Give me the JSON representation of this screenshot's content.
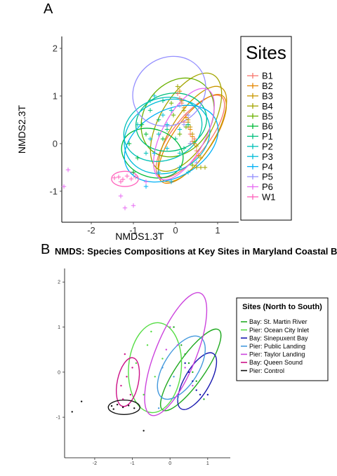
{
  "panels": {
    "a_letter": "A",
    "b_letter": "B",
    "b_title": "NMDS: Species Compositions at Key Sites in Maryland Coastal Bays"
  },
  "chart_data": [
    {
      "type": "scatter",
      "title": "",
      "xlabel": "NMDS1.3T",
      "ylabel": "NMDS2.3T",
      "xlim": [
        -2.7,
        1.5
      ],
      "ylim": [
        -1.65,
        2.25
      ],
      "xticks": [
        -2,
        -1,
        0,
        1
      ],
      "yticks": [
        -1,
        0,
        1,
        2
      ],
      "grid": false,
      "legend_position": "right",
      "legend_title": "Sites",
      "marker": "plus",
      "series": [
        {
          "name": "B1",
          "color": "#F8766D",
          "points": [
            [
              0.05,
              1.05
            ],
            [
              0.15,
              0.85
            ],
            [
              0.25,
              0.6
            ],
            [
              0.3,
              0.35
            ],
            [
              0.35,
              0.2
            ],
            [
              0.2,
              0.45
            ],
            [
              0.4,
              0.05
            ],
            [
              0.5,
              -0.15
            ],
            [
              0.45,
              0.1
            ],
            [
              0.1,
              0.95
            ]
          ],
          "ellipse": {
            "cx": 0.35,
            "cy": 0.15,
            "rx": 1.2,
            "ry": 0.38,
            "angle": -52
          }
        },
        {
          "name": "B2",
          "color": "#E58700",
          "points": [
            [
              0.1,
              1.1
            ],
            [
              0.2,
              0.75
            ],
            [
              0.3,
              0.45
            ],
            [
              0.35,
              0.3
            ],
            [
              0.45,
              0.0
            ],
            [
              0.55,
              -0.25
            ],
            [
              0.25,
              0.55
            ],
            [
              0.4,
              0.15
            ]
          ],
          "ellipse": {
            "cx": 0.4,
            "cy": 0.1,
            "rx": 1.25,
            "ry": 0.4,
            "angle": -55
          }
        },
        {
          "name": "B3",
          "color": "#C99800",
          "points": [
            [
              0.15,
              0.9
            ],
            [
              0.3,
              0.5
            ],
            [
              0.4,
              0.2
            ],
            [
              0.5,
              -0.05
            ],
            [
              0.6,
              -0.3
            ],
            [
              0.35,
              0.35
            ]
          ],
          "ellipse": {
            "cx": 0.4,
            "cy": 0.2,
            "rx": 1.3,
            "ry": 0.45,
            "angle": -58
          }
        },
        {
          "name": "B4",
          "color": "#A3A500",
          "points": [
            [
              0.05,
              1.2
            ],
            [
              0.2,
              0.7
            ],
            [
              0.3,
              0.4
            ],
            [
              0.45,
              0.05
            ],
            [
              0.6,
              -0.5
            ],
            [
              0.7,
              -0.5
            ],
            [
              0.5,
              -0.5
            ]
          ],
          "ellipse": {
            "cx": 0.25,
            "cy": 0.45,
            "rx": 1.3,
            "ry": 0.55,
            "angle": -60
          }
        },
        {
          "name": "B5",
          "color": "#6BB100",
          "points": [
            [
              -0.2,
              0.4
            ],
            [
              -0.05,
              0.6
            ],
            [
              0.1,
              0.2
            ],
            [
              0.25,
              0.35
            ],
            [
              0.35,
              0.0
            ],
            [
              -0.1,
              0.85
            ],
            [
              0.4,
              -0.45
            ]
          ],
          "ellipse": {
            "cx": 0.05,
            "cy": 0.55,
            "rx": 1.0,
            "ry": 0.7,
            "angle": -55
          }
        },
        {
          "name": "B6",
          "color": "#00BA38",
          "points": [
            [
              -1.1,
              0.0
            ],
            [
              -0.9,
              -0.3
            ],
            [
              -0.7,
              0.2
            ],
            [
              -0.5,
              -0.2
            ],
            [
              -0.3,
              0.1
            ],
            [
              -1.0,
              -0.6
            ],
            [
              -0.8,
              0.4
            ]
          ],
          "ellipse": {
            "cx": -0.55,
            "cy": -0.2,
            "rx": 0.75,
            "ry": 0.5,
            "angle": 20
          }
        },
        {
          "name": "P1",
          "color": "#00BF7D",
          "points": [
            [
              -0.6,
              0.7
            ],
            [
              -0.4,
              0.5
            ],
            [
              -0.2,
              0.3
            ],
            [
              0.0,
              0.1
            ],
            [
              0.2,
              -0.1
            ],
            [
              -0.3,
              0.9
            ],
            [
              0.3,
              0.4
            ]
          ],
          "ellipse": {
            "cx": -0.1,
            "cy": 0.45,
            "rx": 0.85,
            "ry": 0.6,
            "angle": -15
          }
        },
        {
          "name": "P2",
          "color": "#00C0B8",
          "points": [
            [
              -0.9,
              0.4
            ],
            [
              -0.6,
              0.9
            ],
            [
              -0.4,
              0.2
            ],
            [
              -0.1,
              0.7
            ],
            [
              0.1,
              -0.2
            ],
            [
              -0.7,
              -0.2
            ]
          ],
          "ellipse": {
            "cx": -0.3,
            "cy": 0.3,
            "rx": 0.95,
            "ry": 0.65,
            "angle": -20
          }
        },
        {
          "name": "P3",
          "color": "#00BCD8",
          "points": [
            [
              -0.5,
              1.0
            ],
            [
              -0.3,
              0.6
            ],
            [
              -0.2,
              -0.1
            ],
            [
              0.1,
              0.3
            ],
            [
              0.3,
              -0.6
            ],
            [
              -0.6,
              0.1
            ]
          ],
          "ellipse": {
            "cx": -0.2,
            "cy": 0.15,
            "rx": 1.05,
            "ry": 0.75,
            "angle": -25
          }
        },
        {
          "name": "P4",
          "color": "#00B0F6",
          "points": [
            [
              -0.7,
              -0.9
            ],
            [
              -0.4,
              -0.6
            ],
            [
              -0.1,
              -0.8
            ],
            [
              0.1,
              -0.5
            ],
            [
              -0.5,
              -0.2
            ],
            [
              -0.2,
              0.4
            ]
          ],
          "ellipse": {
            "cx": -0.1,
            "cy": 0.0,
            "rx": 1.2,
            "ry": 0.7,
            "angle": -30
          }
        },
        {
          "name": "P5",
          "color": "#9590FF",
          "points": [
            [
              0.1,
              0.8
            ],
            [
              0.2,
              0.4
            ],
            [
              0.35,
              0.0
            ],
            [
              0.5,
              -0.4
            ],
            [
              0.3,
              0.6
            ]
          ],
          "ellipse": {
            "cx": -0.15,
            "cy": 1.1,
            "rx": 0.9,
            "ry": 0.7,
            "angle": -35
          }
        },
        {
          "name": "P6",
          "color": "#E76BF3",
          "points": [
            [
              -1.3,
              -1.1
            ],
            [
              -1.0,
              -1.3
            ],
            [
              -0.7,
              -0.8
            ],
            [
              -2.55,
              -0.55
            ],
            [
              -2.65,
              -0.9
            ],
            [
              -1.2,
              -1.35
            ]
          ],
          "ellipse": {
            "cx": 0.2,
            "cy": 0.2,
            "rx": 1.2,
            "ry": 0.45,
            "angle": -62
          }
        },
        {
          "name": "W1",
          "color": "#FF62BC",
          "points": [
            [
              -1.45,
              -0.72
            ],
            [
              -1.35,
              -0.7
            ],
            [
              -1.25,
              -0.75
            ],
            [
              -1.15,
              -0.68
            ],
            [
              -1.05,
              -0.74
            ],
            [
              -0.95,
              -0.7
            ],
            [
              -1.3,
              -0.8
            ]
          ],
          "ellipse": {
            "cx": -1.2,
            "cy": -0.74,
            "rx": 0.32,
            "ry": 0.16,
            "angle": 0
          }
        }
      ]
    },
    {
      "type": "scatter",
      "title": "NMDS: Species Compositions at Key Sites in Maryland Coastal Bays",
      "xlabel": "",
      "ylabel": "",
      "xlim": [
        -2.8,
        1.6
      ],
      "ylim": [
        -1.9,
        2.3
      ],
      "xticks": [
        -2,
        -1,
        0,
        1
      ],
      "yticks": [
        -1,
        0,
        1,
        2
      ],
      "grid": false,
      "legend_position": "right",
      "legend_title": "Sites (North to South)",
      "marker": "dot",
      "series": [
        {
          "name": "Bay: St. Martin River",
          "color": "#22AA22",
          "points": [
            [
              0.1,
              1.0
            ],
            [
              0.3,
              0.6
            ],
            [
              0.5,
              0.2
            ],
            [
              0.7,
              -0.2
            ],
            [
              0.9,
              -0.6
            ],
            [
              0.4,
              0.4
            ],
            [
              0.6,
              0.0
            ]
          ],
          "ellipse": {
            "cx": 0.55,
            "cy": 0.05,
            "rx": 1.3,
            "ry": 0.3,
            "angle": -55
          }
        },
        {
          "name": "Pier: Ocean City Inlet",
          "color": "#55DD44",
          "points": [
            [
              -0.9,
              0.2
            ],
            [
              -0.6,
              0.6
            ],
            [
              -0.4,
              -0.1
            ],
            [
              -0.2,
              0.3
            ],
            [
              -0.7,
              -0.5
            ],
            [
              -0.5,
              0.9
            ]
          ],
          "ellipse": {
            "cx": -0.4,
            "cy": 0.1,
            "rx": 0.7,
            "ry": 1.0,
            "angle": 5
          }
        },
        {
          "name": "Bay: Sinepuxent Bay",
          "color": "#1A1AB0",
          "points": [
            [
              0.4,
              0.2
            ],
            [
              0.6,
              -0.2
            ],
            [
              0.8,
              -0.5
            ],
            [
              1.0,
              -0.5
            ],
            [
              0.7,
              -0.4
            ],
            [
              0.5,
              0.0
            ]
          ],
          "ellipse": {
            "cx": 0.72,
            "cy": -0.2,
            "rx": 0.85,
            "ry": 0.28,
            "angle": -60
          }
        },
        {
          "name": "Pier: Public Landing",
          "color": "#4499DD",
          "points": [
            [
              -0.2,
              0.1
            ],
            [
              0.0,
              -0.3
            ],
            [
              0.2,
              -0.6
            ],
            [
              -0.3,
              -0.8
            ],
            [
              0.1,
              -0.1
            ]
          ],
          "ellipse": {
            "cx": 0.3,
            "cy": 0.1,
            "rx": 0.95,
            "ry": 0.38,
            "angle": -58
          }
        },
        {
          "name": "Pier: Taylor Landing",
          "color": "#CC44DD",
          "points": [
            [
              0.0,
              1.0
            ],
            [
              0.2,
              0.6
            ],
            [
              0.4,
              0.1
            ],
            [
              0.6,
              -0.3
            ],
            [
              -0.1,
              0.5
            ]
          ],
          "ellipse": {
            "cx": 0.15,
            "cy": 0.4,
            "rx": 1.75,
            "ry": 0.45,
            "angle": -68
          }
        },
        {
          "name": "Bay: Queen Sound",
          "color": "#CC1188",
          "points": [
            [
              -1.3,
              -0.3
            ],
            [
              -1.15,
              -0.1
            ],
            [
              -1.0,
              0.1
            ],
            [
              -1.2,
              0.4
            ],
            [
              -1.05,
              -0.5
            ],
            [
              -1.25,
              -0.6
            ]
          ],
          "ellipse": {
            "cx": -1.12,
            "cy": -0.22,
            "rx": 0.28,
            "ry": 0.55,
            "angle": 12
          }
        },
        {
          "name": "Pier: Control",
          "color": "#111111",
          "points": [
            [
              -1.55,
              -0.75
            ],
            [
              -1.4,
              -0.72
            ],
            [
              -1.25,
              -0.78
            ],
            [
              -1.1,
              -0.74
            ],
            [
              -0.95,
              -0.8
            ],
            [
              -2.35,
              -0.65
            ],
            [
              -2.6,
              -0.88
            ],
            [
              -0.7,
              -1.3
            ],
            [
              -1.5,
              -0.82
            ]
          ],
          "ellipse": {
            "cx": -1.22,
            "cy": -0.78,
            "rx": 0.42,
            "ry": 0.16,
            "angle": 0
          }
        }
      ]
    }
  ]
}
